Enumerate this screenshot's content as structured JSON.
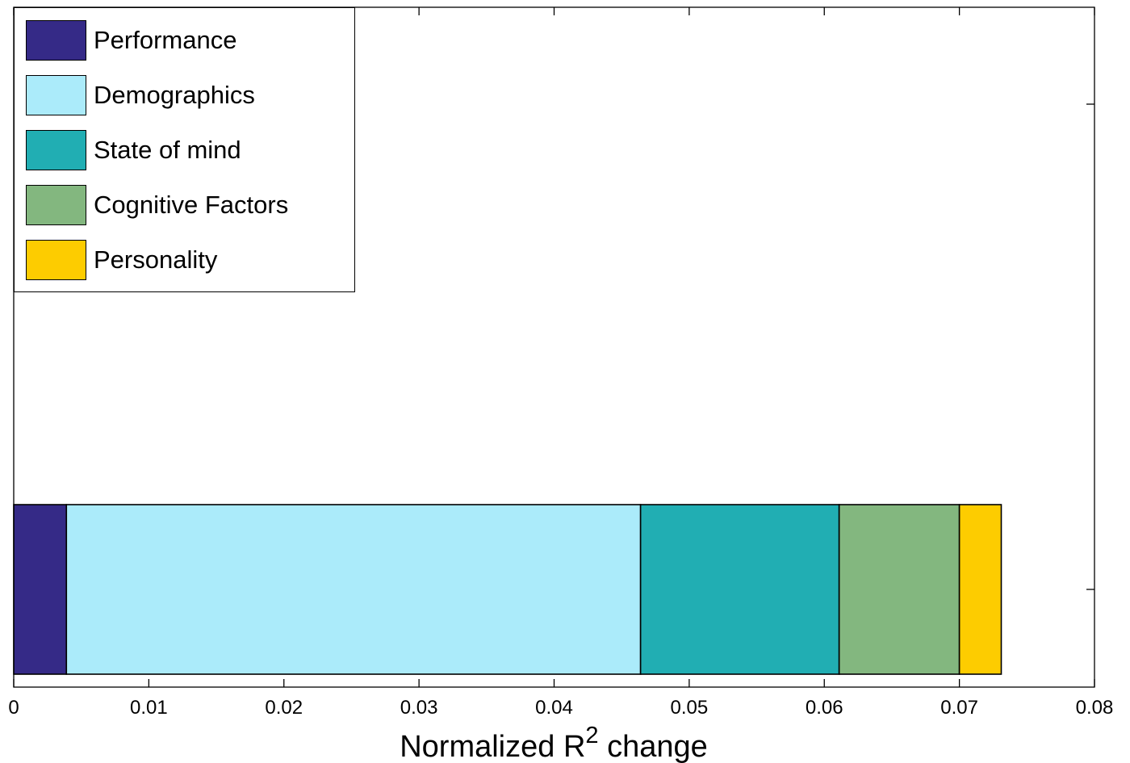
{
  "chart_data": {
    "type": "bar",
    "orientation": "horizontal",
    "stacked": true,
    "xlabel_main": "Normalized R",
    "xlabel_sup": "2",
    "xlabel_tail": " change",
    "xlim": [
      0,
      0.08
    ],
    "xticks": [
      "0",
      "0.01",
      "0.02",
      "0.03",
      "0.04",
      "0.05",
      "0.06",
      "0.07",
      "0.08"
    ],
    "xtick_values": [
      0,
      0.01,
      0.02,
      0.03,
      0.04,
      0.05,
      0.06,
      0.07,
      0.08
    ],
    "grid": false,
    "legend_position": "top-left",
    "series": [
      {
        "name": "Performance",
        "value": 0.0039,
        "color": "#352a87"
      },
      {
        "name": "Demographics",
        "value": 0.0425,
        "color": "#abebfa"
      },
      {
        "name": "State of mind",
        "value": 0.0147,
        "color": "#21aeb3"
      },
      {
        "name": "Cognitive Factors",
        "value": 0.0089,
        "color": "#83b77f"
      },
      {
        "name": "Personality",
        "value": 0.0031,
        "color": "#fdcc00"
      }
    ]
  }
}
